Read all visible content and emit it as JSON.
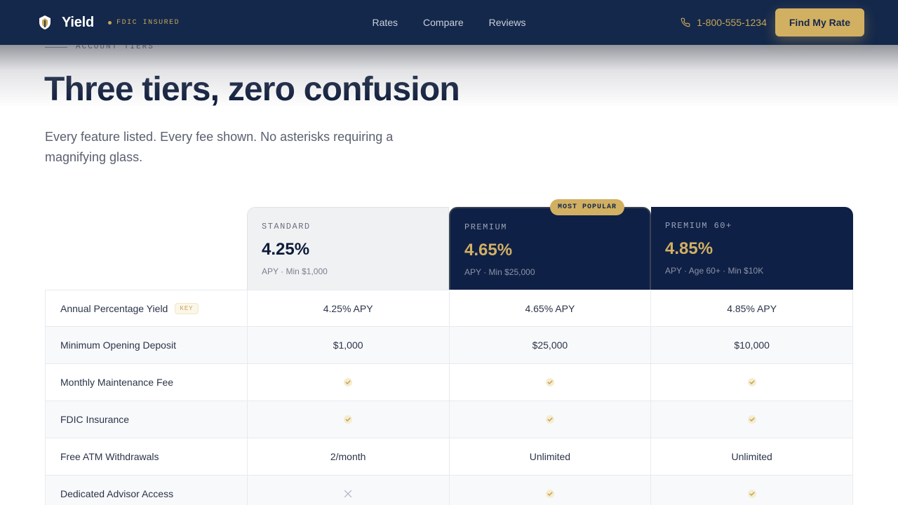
{
  "nav": {
    "brand": "Yield",
    "badge": "FDIC INSURED",
    "links": [
      "Rates",
      "Compare",
      "Reviews"
    ],
    "phone": "1-800-555-1234",
    "cta": "Find My Rate"
  },
  "hero": {
    "eyebrow": "ACCOUNT TIERS",
    "title": "Three tiers, zero confusion",
    "subtitle": "Every feature listed. Every fee shown. No asterisks requiring a magnifying glass."
  },
  "tiers": [
    {
      "name": "STANDARD",
      "rate": "4.25%",
      "meta": "APY · Min $1,000"
    },
    {
      "name": "PREMIUM",
      "rate": "4.65%",
      "meta": "APY · Min $25,000",
      "badge": "MOST POPULAR"
    },
    {
      "name": "PREMIUM 60+",
      "rate": "4.85%",
      "meta": "APY · Age 60+ · Min $10K"
    }
  ],
  "rows": [
    {
      "label": "Annual Percentage Yield",
      "badge": "KEY",
      "values": [
        "4.25% APY",
        "4.65% APY",
        "4.85% APY"
      ]
    },
    {
      "label": "Minimum Opening Deposit",
      "values": [
        "$1,000",
        "$25,000",
        "$10,000"
      ]
    },
    {
      "label": "Monthly Maintenance Fee",
      "values": [
        "check",
        "check",
        "check"
      ]
    },
    {
      "label": "FDIC Insurance",
      "values": [
        "check",
        "check",
        "check"
      ]
    },
    {
      "label": "Free ATM Withdrawals",
      "values": [
        "2/month",
        "Unlimited",
        "Unlimited"
      ]
    },
    {
      "label": "Dedicated Advisor Access",
      "values": [
        "cross",
        "check",
        "check"
      ]
    }
  ],
  "colors": {
    "navy": "#14284b",
    "gold": "#d2b062",
    "tier_dark": "#0f2047"
  },
  "icons": {
    "logo": "shield-logo-icon",
    "phone": "phone-icon",
    "check": "check-icon",
    "cross": "x-icon"
  }
}
